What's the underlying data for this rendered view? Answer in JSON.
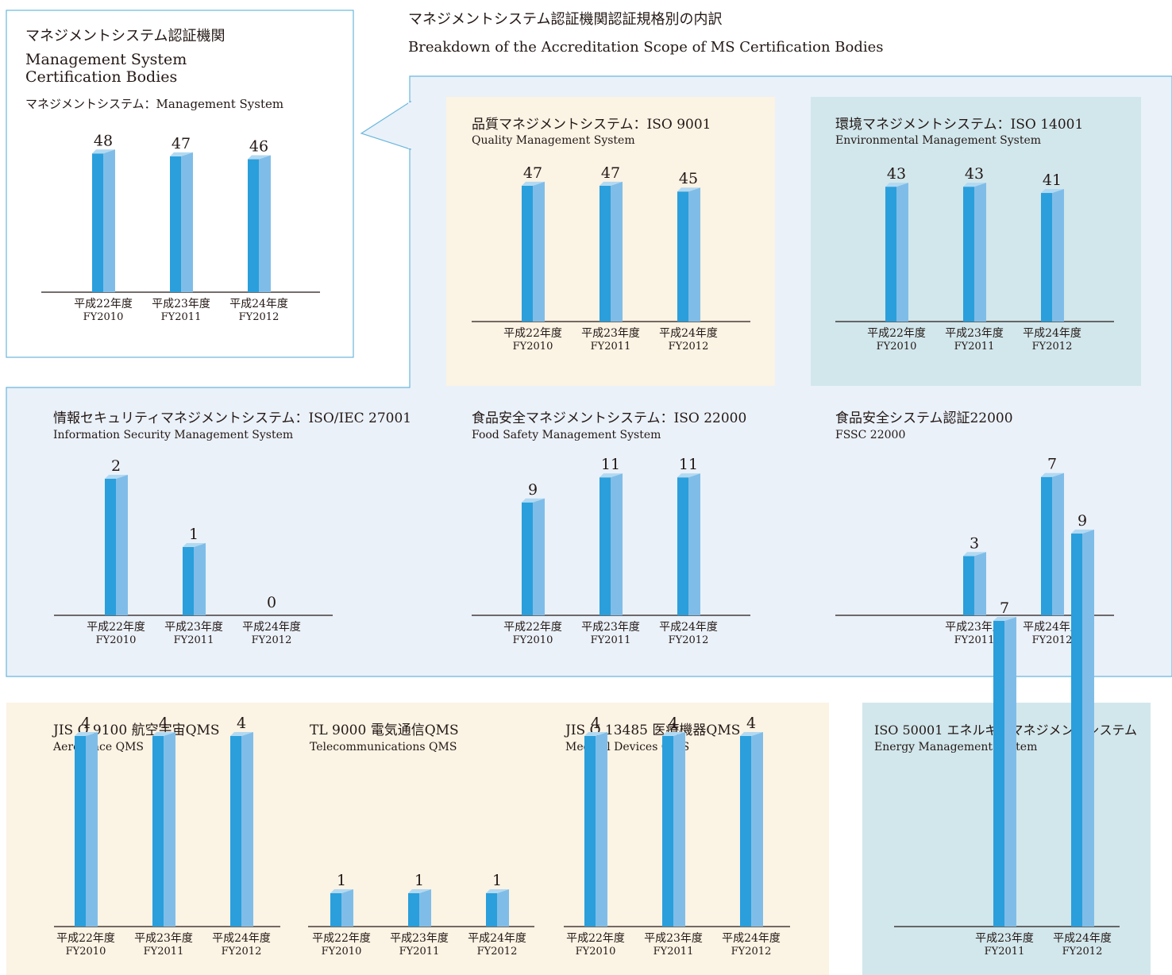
{
  "colors": {
    "bar_front": "#2a9fdc",
    "bar_side": "#7fbde8",
    "bar_top": "#b2d9f2",
    "light_blue_bg": "#eaf1f9",
    "cream_bg": "#fbf3e4",
    "teal_bg": "#d2e7ec",
    "panel_border": "#6ab7dd",
    "text": "#231815"
  },
  "heading": {
    "title_jp": "マネジメントシステム認証機関認証規格別の内訳",
    "title_en": "Breakdown of the Accreditation Scope of MS Certification Bodies"
  },
  "summary_box": {
    "title_jp": "マネジメントシステム認証機関",
    "title_en_1": "Management System",
    "title_en_2": "Certification Bodies",
    "subtitle": "マネジメントシステム：Management System"
  },
  "panels": [
    {
      "title": "品質マネジメントシステム：ISO 9001",
      "subtitle": "Quality Management System"
    },
    {
      "title": "環境マネジメントシステム：ISO 14001",
      "subtitle": "Environmental Management System"
    },
    {
      "title": "情報セキュリティマネジメントシステム：ISO/IEC 27001",
      "subtitle": "Information Security Management System"
    },
    {
      "title": "食品安全マネジメントシステム：ISO 22000",
      "subtitle": "Food Safety Management System"
    },
    {
      "title": "食品安全システム認証22000",
      "subtitle": "FSSC 22000"
    },
    {
      "title": "JIS Q 9100 航空宇宙QMS",
      "subtitle": "Aerospace QMS"
    },
    {
      "title": "TL 9000 電気通信QMS",
      "subtitle": "Telecommunications QMS"
    },
    {
      "title": "JIS Q 13485 医療機器QMS",
      "subtitle": "Medical Devices QMS"
    },
    {
      "title": "ISO 50001 エネルギーマネジメントシステム",
      "subtitle": "Energy Management System"
    }
  ],
  "chart_data": [
    {
      "type": "bar",
      "title": "マネジメントシステム：Management System",
      "categories": [
        "平成22年度\nFY2010",
        "平成23年度\nFY2011",
        "平成24年度\nFY2012"
      ],
      "values": [
        48,
        47,
        46
      ]
    },
    {
      "type": "bar",
      "title": "品質マネジメントシステム：ISO 9001",
      "categories": [
        "平成22年度\nFY2010",
        "平成23年度\nFY2011",
        "平成24年度\nFY2012"
      ],
      "values": [
        47,
        47,
        45
      ]
    },
    {
      "type": "bar",
      "title": "環境マネジメントシステム：ISO 14001",
      "categories": [
        "平成22年度\nFY2010",
        "平成23年度\nFY2011",
        "平成24年度\nFY2012"
      ],
      "values": [
        43,
        43,
        41
      ]
    },
    {
      "type": "bar",
      "title": "情報セキュリティマネジメントシステム：ISO/IEC 27001",
      "categories": [
        "平成22年度\nFY2010",
        "平成23年度\nFY2011",
        "平成24年度\nFY2012"
      ],
      "values": [
        2,
        1,
        0
      ]
    },
    {
      "type": "bar",
      "title": "食品安全マネジメントシステム：ISO 22000",
      "categories": [
        "平成22年度\nFY2010",
        "平成23年度\nFY2011",
        "平成24年度\nFY2012"
      ],
      "values": [
        9,
        11,
        11
      ]
    },
    {
      "type": "bar",
      "title": "食品安全システム認証22000",
      "categories": [
        "平成23年度\nFY2011",
        "平成24年度\nFY2012"
      ],
      "values": [
        3,
        7
      ]
    },
    {
      "type": "bar",
      "title": "JIS Q 9100 航空宇宙QMS",
      "categories": [
        "平成22年度\nFY2010",
        "平成23年度\nFY2011",
        "平成24年度\nFY2012"
      ],
      "values": [
        4,
        4,
        4
      ]
    },
    {
      "type": "bar",
      "title": "TL 9000 電気通信QMS",
      "categories": [
        "平成22年度\nFY2010",
        "平成23年度\nFY2011",
        "平成24年度\nFY2012"
      ],
      "values": [
        1,
        1,
        1
      ]
    },
    {
      "type": "bar",
      "title": "JIS Q 13485 医療機器QMS",
      "categories": [
        "平成22年度\nFY2010",
        "平成23年度\nFY2011",
        "平成24年度\nFY2012"
      ],
      "values": [
        4,
        4,
        4
      ]
    },
    {
      "type": "bar",
      "title": "ISO 50001 エネルギーマネジメントシステム",
      "categories": [
        "平成23年度\nFY2011",
        "平成24年度\nFY2012"
      ],
      "values": [
        7,
        9
      ]
    }
  ]
}
